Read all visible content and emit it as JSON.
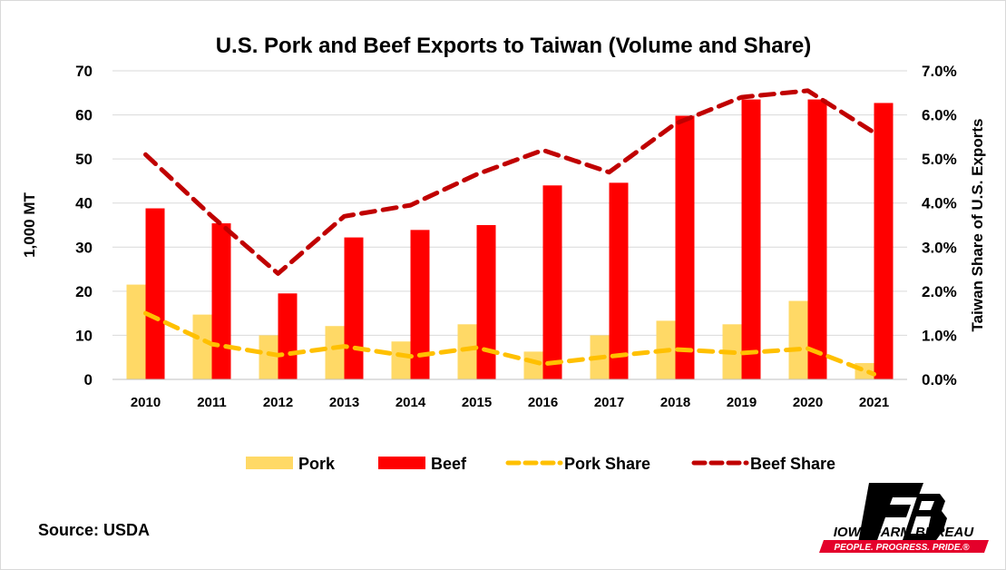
{
  "chart_data": {
    "type": "bar",
    "title": "U.S. Pork and Beef Exports to Taiwan (Volume and Share)",
    "categories": [
      "2010",
      "2011",
      "2012",
      "2013",
      "2014",
      "2015",
      "2016",
      "2017",
      "2018",
      "2019",
      "2020",
      "2021"
    ],
    "bar_series": [
      {
        "name": "Pork",
        "color": "#ffd966",
        "values": [
          21.5,
          14.7,
          10.0,
          12.1,
          8.6,
          12.5,
          6.3,
          10.0,
          13.3,
          12.5,
          17.8,
          3.7
        ]
      },
      {
        "name": "Beef",
        "color": "#ff0000",
        "values": [
          38.8,
          35.4,
          19.5,
          32.2,
          33.9,
          35.0,
          44.0,
          44.6,
          59.8,
          63.5,
          63.5,
          62.7
        ]
      }
    ],
    "line_series": [
      {
        "name": "Pork Share",
        "color": "#ffc000",
        "axis": "right",
        "values": [
          1.5,
          0.8,
          0.55,
          0.75,
          0.52,
          0.72,
          0.35,
          0.52,
          0.68,
          0.6,
          0.7,
          0.12
        ]
      },
      {
        "name": "Beef Share",
        "color": "#c00000",
        "axis": "right",
        "values": [
          5.1,
          3.7,
          2.4,
          3.7,
          3.95,
          4.65,
          5.2,
          4.7,
          5.8,
          6.4,
          6.55,
          5.6
        ]
      }
    ],
    "ylabel": "1,000 MT",
    "ylim": [
      0,
      70
    ],
    "yticks": [
      "0",
      "10",
      "20",
      "30",
      "40",
      "50",
      "60",
      "70"
    ],
    "y2label": "Taiwan Share of U.S. Exports",
    "y2lim": [
      0,
      7
    ],
    "y2ticks": [
      "0.0%",
      "1.0%",
      "2.0%",
      "3.0%",
      "4.0%",
      "5.0%",
      "6.0%",
      "7.0%"
    ],
    "grid": true,
    "legend_position": "bottom"
  },
  "source": "Source: USDA",
  "logo": {
    "name": "IOWA FARM BUREAU",
    "tagline": "PEOPLE. PROGRESS. PRIDE.®"
  }
}
